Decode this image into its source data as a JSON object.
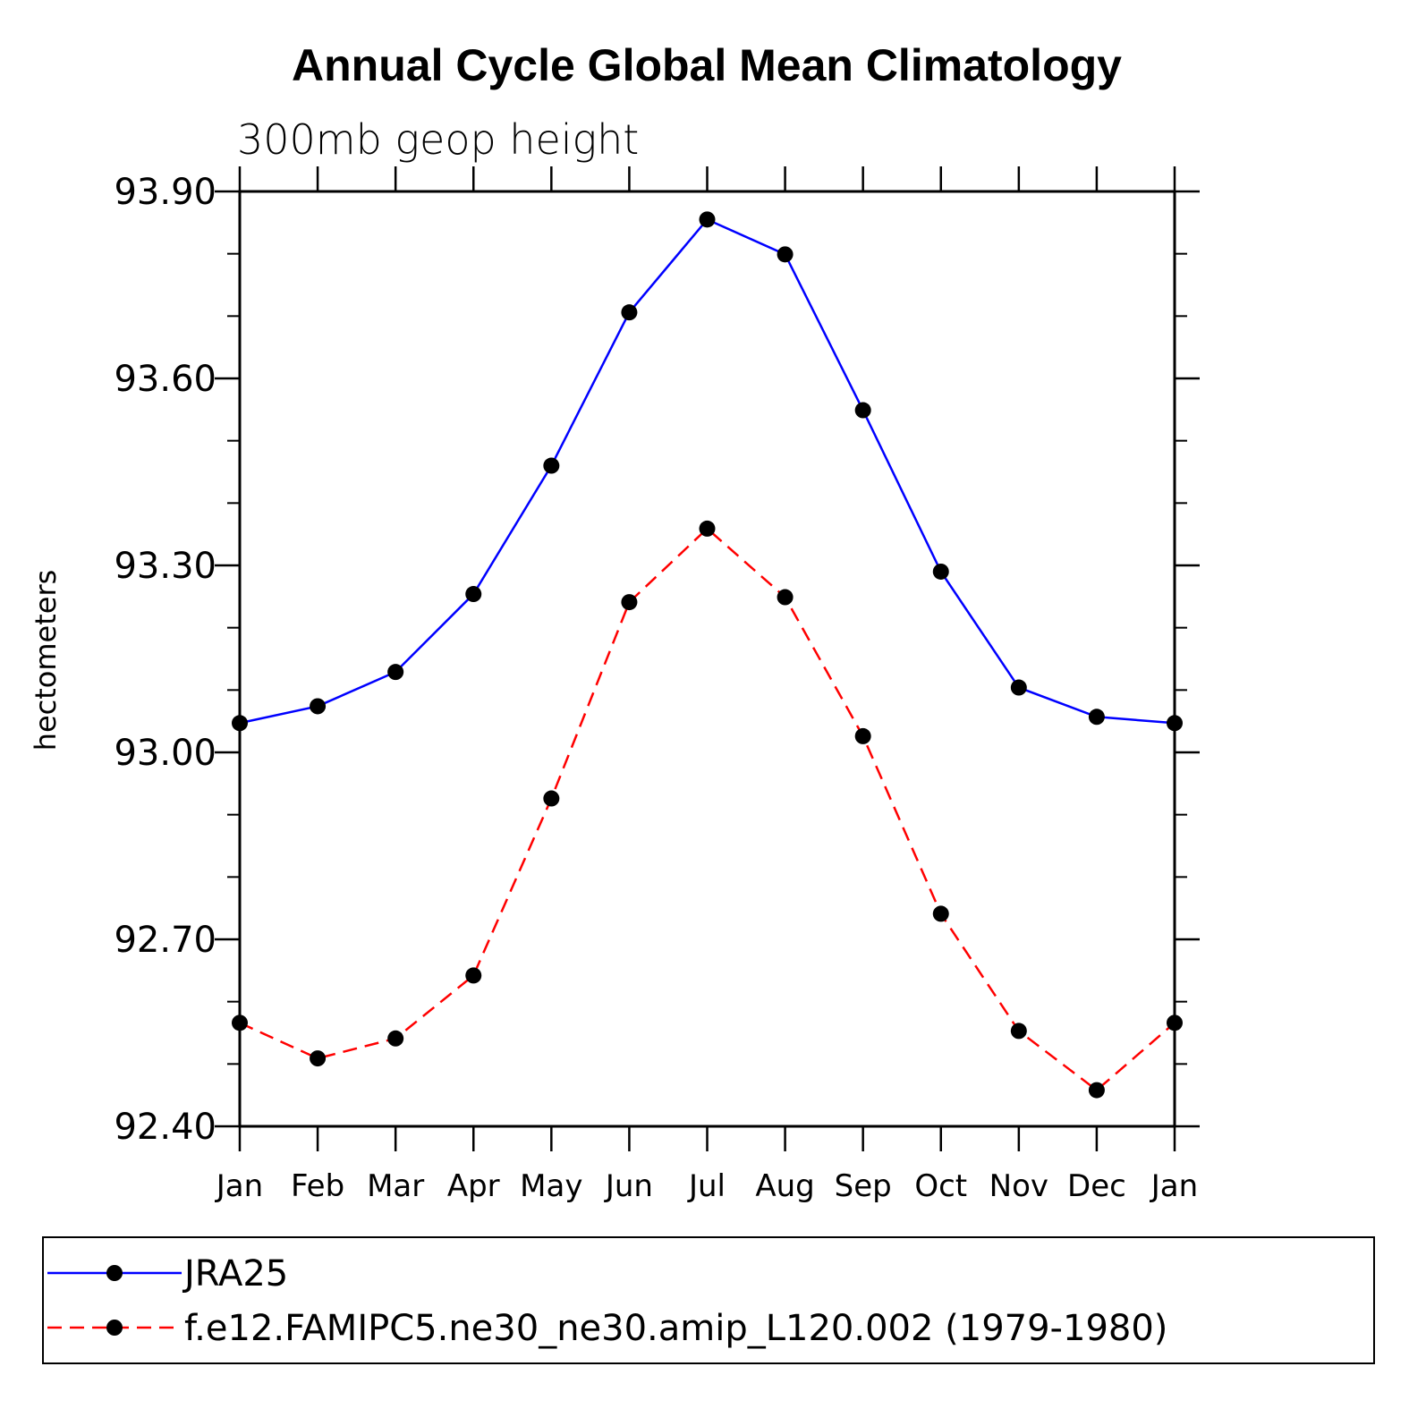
{
  "chart_data": {
    "type": "line",
    "title": "Annual Cycle Global Mean Climatology",
    "subtitle": "300mb geop height",
    "ylabel": "hectometers",
    "xlabel": "",
    "categories": [
      "Jan",
      "Feb",
      "Mar",
      "Apr",
      "May",
      "Jun",
      "Jul",
      "Aug",
      "Sep",
      "Oct",
      "Nov",
      "Dec",
      "Jan"
    ],
    "ylim": [
      92.4,
      93.9
    ],
    "yticks": [
      "92.40",
      "92.70",
      "93.00",
      "93.30",
      "93.60",
      "93.90"
    ],
    "ytick_values": [
      92.4,
      92.7,
      93.0,
      93.3,
      93.6,
      93.9
    ],
    "legend_position": "bottom",
    "series": [
      {
        "name": "JRA25",
        "color": "#0000ff",
        "style": "solid",
        "values": [
          93.047,
          93.074,
          93.129,
          93.254,
          93.46,
          93.706,
          93.855,
          93.799,
          93.549,
          93.29,
          93.104,
          93.057,
          93.047
        ]
      },
      {
        "name": "f.e12.FAMIPC5.ne30_ne30.amip_L120.002 (1979-1980)",
        "color": "#ff0000",
        "style": "dashed",
        "values": [
          92.566,
          92.509,
          92.541,
          92.642,
          92.926,
          93.241,
          93.359,
          93.249,
          93.026,
          92.741,
          92.553,
          92.458,
          92.566
        ]
      }
    ]
  }
}
